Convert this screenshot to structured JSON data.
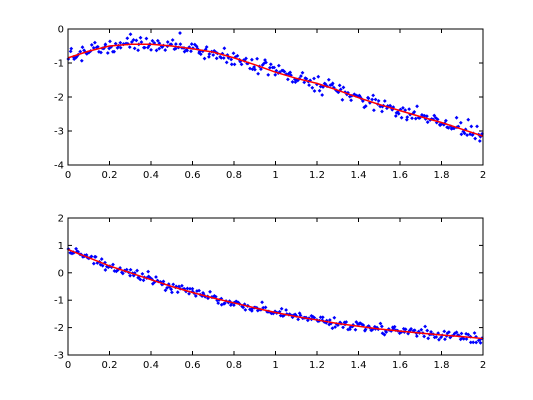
{
  "chart_data": [
    {
      "type": "scatter",
      "title": "",
      "xlabel": "",
      "ylabel": "",
      "xlim": [
        0,
        2
      ],
      "ylim": [
        -4,
        0
      ],
      "xticks": [
        "0",
        "0.2",
        "0.4",
        "0.6",
        "0.8",
        "1",
        "1.2",
        "1.4",
        "1.6",
        "1.8",
        "2"
      ],
      "yticks": [
        "-4",
        "-3",
        "-2",
        "-1",
        "0"
      ],
      "grid": false,
      "colors": {
        "points": "#0000ff",
        "fit": "#ff0000"
      },
      "fit_x": [
        0,
        0.1,
        0.2,
        0.3,
        0.4,
        0.5,
        0.6,
        0.7,
        0.8,
        0.9,
        1.0,
        1.1,
        1.2,
        1.3,
        1.4,
        1.5,
        1.6,
        1.7,
        1.8,
        1.9,
        2.0
      ],
      "fit_y": [
        -0.85,
        -0.65,
        -0.5,
        -0.45,
        -0.45,
        -0.5,
        -0.58,
        -0.68,
        -0.85,
        -1.05,
        -1.27,
        -1.45,
        -1.6,
        -1.8,
        -2.02,
        -2.22,
        -2.4,
        -2.58,
        -2.75,
        -2.95,
        -3.15
      ],
      "noise": 0.11,
      "n_points": 300
    },
    {
      "type": "scatter",
      "title": "",
      "xlabel": "",
      "ylabel": "",
      "xlim": [
        0,
        2
      ],
      "ylim": [
        -3,
        2
      ],
      "xticks": [
        "0",
        "0.2",
        "0.4",
        "0.6",
        "0.8",
        "1",
        "1.2",
        "1.4",
        "1.6",
        "1.8",
        "2"
      ],
      "yticks": [
        "-3",
        "-2",
        "-1",
        "0",
        "1",
        "2"
      ],
      "grid": false,
      "colors": {
        "points": "#0000ff",
        "fit": "#ff0000"
      },
      "fit_x": [
        0,
        0.1,
        0.2,
        0.3,
        0.4,
        0.5,
        0.6,
        0.7,
        0.8,
        0.9,
        1.0,
        1.1,
        1.2,
        1.3,
        1.4,
        1.5,
        1.6,
        1.7,
        1.8,
        1.9,
        2.0
      ],
      "fit_y": [
        0.85,
        0.55,
        0.25,
        0.0,
        -0.25,
        -0.5,
        -0.72,
        -0.92,
        -1.1,
        -1.28,
        -1.45,
        -1.6,
        -1.72,
        -1.85,
        -1.95,
        -2.05,
        -2.13,
        -2.2,
        -2.27,
        -2.33,
        -2.4
      ],
      "noise": 0.09,
      "n_points": 300
    }
  ]
}
